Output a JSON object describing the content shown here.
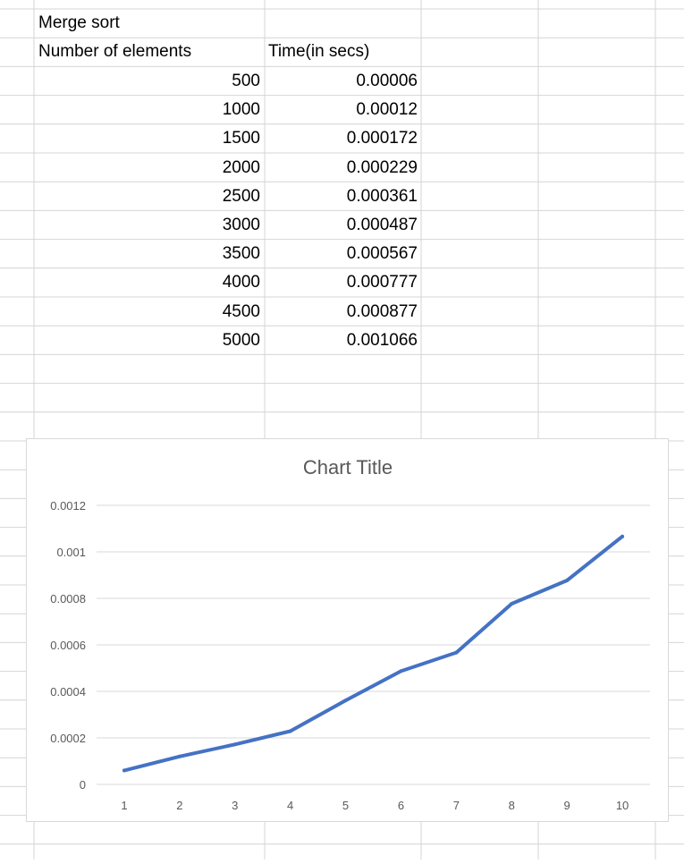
{
  "sheet": {
    "title": "Merge sort",
    "col_a_header": "Number of elements",
    "col_b_header": "Time(in secs)",
    "rows": [
      {
        "n": "500",
        "t": "0.00006"
      },
      {
        "n": "1000",
        "t": "0.00012"
      },
      {
        "n": "1500",
        "t": "0.000172"
      },
      {
        "n": "2000",
        "t": "0.000229"
      },
      {
        "n": "2500",
        "t": "0.000361"
      },
      {
        "n": "3000",
        "t": "0.000487"
      },
      {
        "n": "3500",
        "t": "0.000567"
      },
      {
        "n": "4000",
        "t": "0.000777"
      },
      {
        "n": "4500",
        "t": "0.000877"
      },
      {
        "n": "5000",
        "t": "0.001066"
      }
    ],
    "gridline_color": "#d4d4d4"
  },
  "chart_data": {
    "type": "line",
    "title": "Chart Title",
    "x": [
      1,
      2,
      3,
      4,
      5,
      6,
      7,
      8,
      9,
      10
    ],
    "series": [
      {
        "values": [
          6e-05,
          0.00012,
          0.000172,
          0.000229,
          0.000361,
          0.000487,
          0.000567,
          0.000777,
          0.000877,
          0.001066
        ]
      }
    ],
    "y_ticks": [
      "0",
      "0.0002",
      "0.0004",
      "0.0006",
      "0.0008",
      "0.001",
      "0.0012"
    ],
    "ylim": [
      0,
      0.0012
    ],
    "x_ticks": [
      "1",
      "2",
      "3",
      "4",
      "5",
      "6",
      "7",
      "8",
      "9",
      "10"
    ],
    "grid": true,
    "line_color": "#4472c4",
    "grid_color": "#d9d9d9",
    "title_color": "#595959",
    "tick_color": "#595959"
  }
}
